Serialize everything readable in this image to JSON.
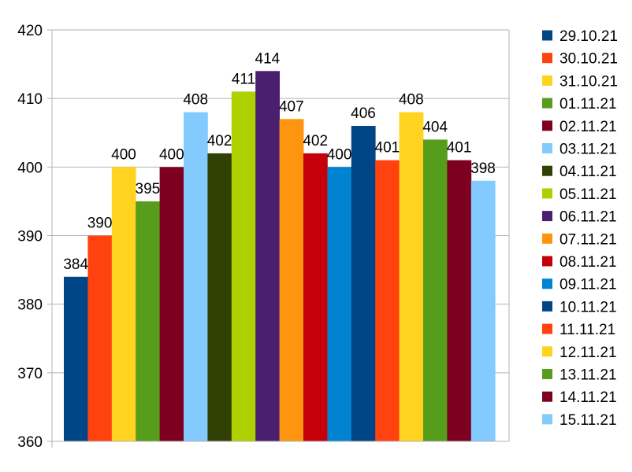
{
  "chart_data": {
    "type": "bar",
    "title": "",
    "xlabel": "",
    "ylabel": "",
    "ylim": [
      360,
      420
    ],
    "y_ticks": [
      360,
      370,
      380,
      390,
      400,
      410,
      420
    ],
    "grid": true,
    "legend_position": "right",
    "series": [
      {
        "name": "29.10.21",
        "value": 384,
        "color": "#004586"
      },
      {
        "name": "30.10.21",
        "value": 390,
        "color": "#ff420e"
      },
      {
        "name": "31.10.21",
        "value": 400,
        "color": "#ffd320"
      },
      {
        "name": "01.11.21",
        "value": 395,
        "color": "#579d1c"
      },
      {
        "name": "02.11.21",
        "value": 400,
        "color": "#7e0021"
      },
      {
        "name": "03.11.21",
        "value": 408,
        "color": "#83caff"
      },
      {
        "name": "04.11.21",
        "value": 402,
        "color": "#314004"
      },
      {
        "name": "05.11.21",
        "value": 411,
        "color": "#aecf00"
      },
      {
        "name": "06.11.21",
        "value": 414,
        "color": "#4b1f6f"
      },
      {
        "name": "07.11.21",
        "value": 407,
        "color": "#ff950e"
      },
      {
        "name": "08.11.21",
        "value": 402,
        "color": "#c5000b"
      },
      {
        "name": "09.11.21",
        "value": 400,
        "color": "#0084d1"
      },
      {
        "name": "10.11.21",
        "value": 406,
        "color": "#004586"
      },
      {
        "name": "11.11.21",
        "value": 401,
        "color": "#ff420e"
      },
      {
        "name": "12.11.21",
        "value": 408,
        "color": "#ffd320"
      },
      {
        "name": "13.11.21",
        "value": 404,
        "color": "#579d1c"
      },
      {
        "name": "14.11.21",
        "value": 401,
        "color": "#7e0021"
      },
      {
        "name": "15.11.21",
        "value": 398,
        "color": "#83caff"
      }
    ]
  }
}
